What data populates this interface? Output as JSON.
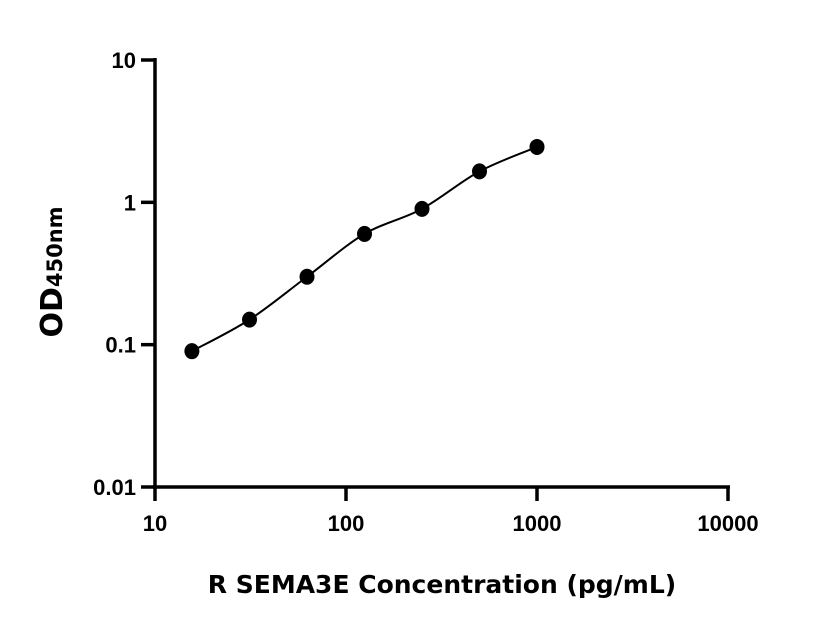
{
  "chart_data": {
    "type": "scatter",
    "xlabel": "R SEMA3E Concentration (pg/mL)",
    "ylabel_main": "OD",
    "ylabel_sub": "450nm",
    "xscale": "log",
    "yscale": "log",
    "xlim": [
      10,
      10000
    ],
    "ylim": [
      0.01,
      10
    ],
    "xticks": [
      "10",
      "100",
      "1000",
      "10000"
    ],
    "yticks": [
      "0.01",
      "0.1",
      "1",
      "10"
    ],
    "grid": false,
    "fit_line": true,
    "x": [
      15.6,
      31.25,
      62.5,
      125,
      250,
      500,
      1000
    ],
    "y": [
      0.09,
      0.15,
      0.3,
      0.6,
      0.9,
      1.65,
      2.45
    ],
    "color": "#000000"
  }
}
